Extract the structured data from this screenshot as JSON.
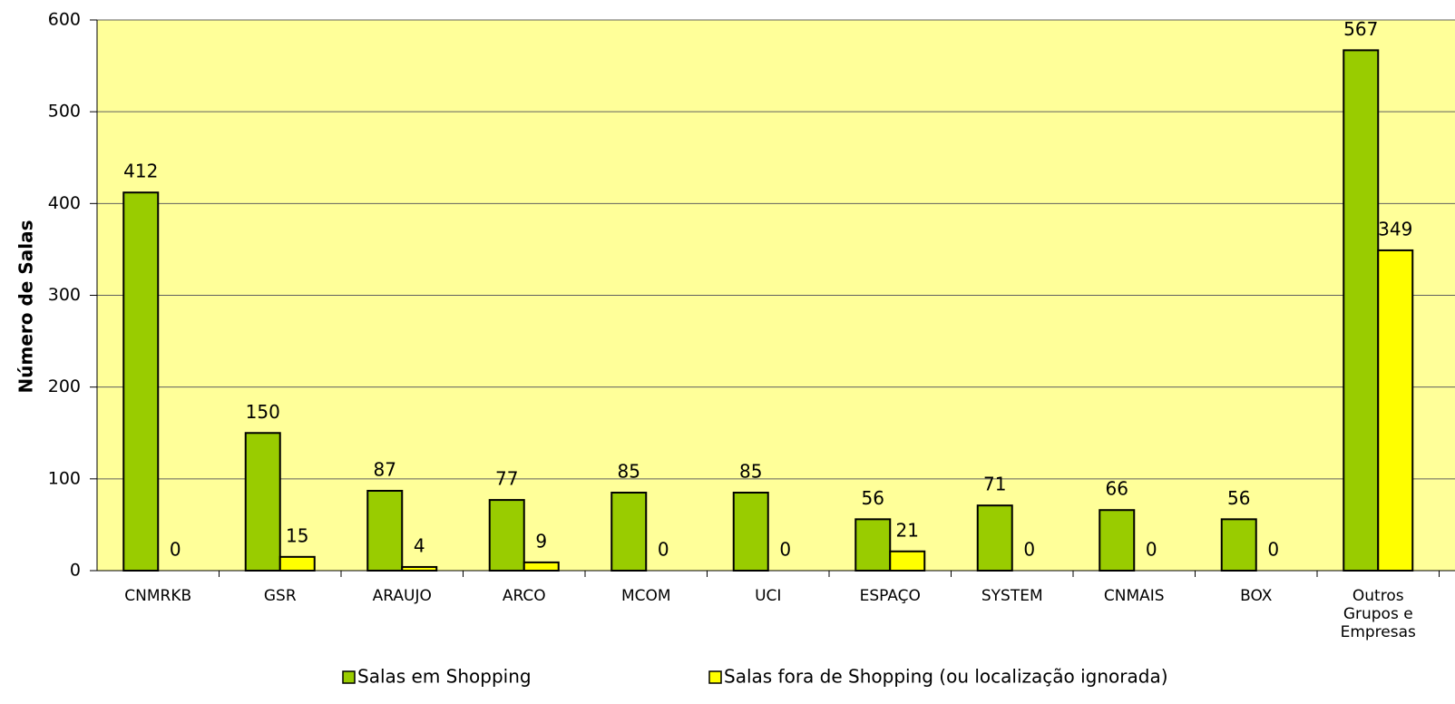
{
  "chart_data": {
    "type": "bar",
    "y_label": "Número de Salas",
    "categories": [
      "CNMRKB",
      "GSR",
      "ARAUJO",
      "ARCO",
      "MCOM",
      "UCI",
      "ESPAÇO",
      "SYSTEM",
      "CNMAIS",
      "BOX",
      "Outros Grupos e Empresas"
    ],
    "series": [
      {
        "name": "Salas em Shopping",
        "color": "#99cc00",
        "values": [
          412,
          150,
          87,
          77,
          85,
          85,
          56,
          71,
          66,
          56,
          567
        ]
      },
      {
        "name": "Salas fora de Shopping (ou localização ignorada)",
        "color": "#ffff00",
        "values": [
          0,
          15,
          4,
          9,
          0,
          0,
          21,
          0,
          0,
          0,
          349
        ]
      }
    ],
    "ylim": [
      0,
      600
    ],
    "yticks": [
      0,
      100,
      200,
      300,
      400,
      500,
      600
    ],
    "grid": true,
    "plot_background": "#ffff99",
    "legend": "bottom"
  }
}
